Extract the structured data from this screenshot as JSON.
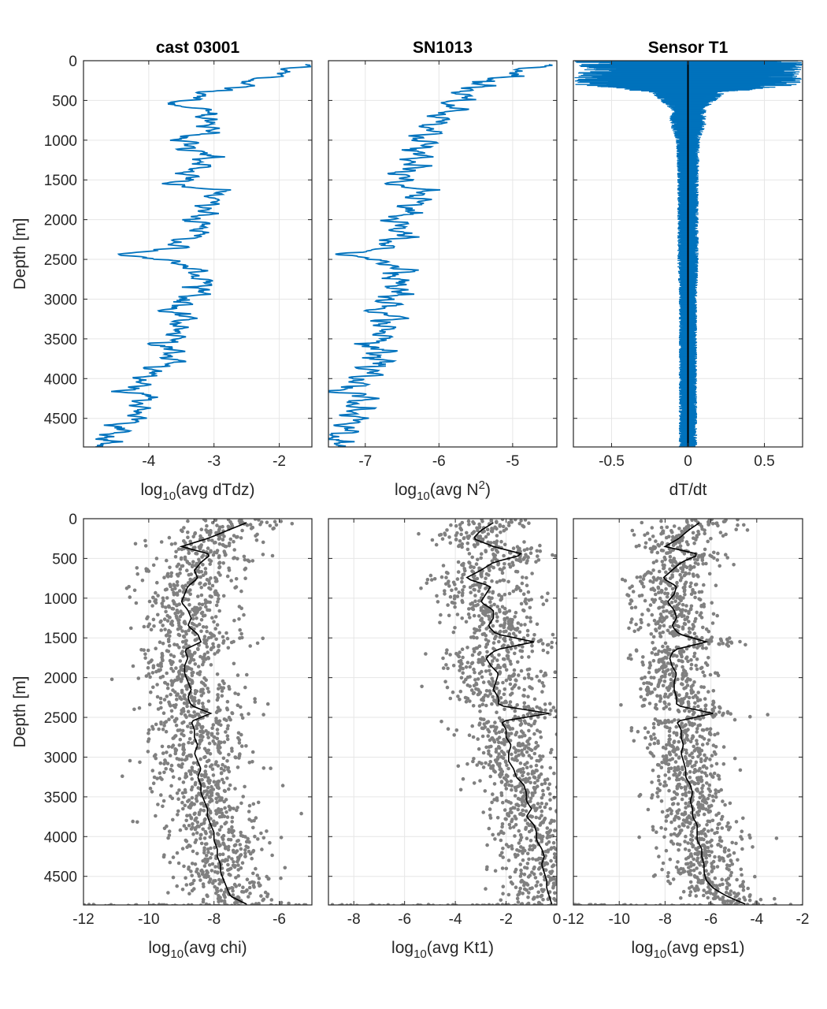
{
  "figure": {
    "colors": {
      "blue": "#0072BD",
      "gray": "#808080",
      "black": "#000000",
      "grid": "#e6e6e6",
      "axis": "#262626"
    }
  },
  "chart_data": [
    {
      "id": "p1",
      "type": "line",
      "title": "cast 03001",
      "xlabel": {
        "pre": "log",
        "sub": "10",
        "post": "(avg dTdz)"
      },
      "ylabel": "Depth [m]",
      "xlim": [
        -5.0,
        -1.5
      ],
      "ylim": [
        0,
        4860
      ],
      "xticks": [
        -4,
        -3,
        -2
      ],
      "xtick_labels": [
        "-4",
        "-3",
        "-2"
      ],
      "yticks": [
        0,
        500,
        1000,
        1500,
        2000,
        2500,
        3000,
        3500,
        4000,
        4500
      ],
      "ytick_labels": [
        "0",
        "500",
        "1000",
        "1500",
        "2000",
        "2500",
        "3000",
        "3500",
        "4000",
        "4500"
      ],
      "series": [
        {
          "color": "#0072BD",
          "y": [
            50,
            150,
            250,
            350,
            450,
            550,
            650,
            750,
            850,
            950,
            1050,
            1150,
            1250,
            1350,
            1450,
            1550,
            1650,
            1750,
            1850,
            1950,
            2050,
            2150,
            2250,
            2350,
            2450,
            2550,
            2650,
            2750,
            2850,
            2950,
            3050,
            3150,
            3250,
            3350,
            3450,
            3550,
            3650,
            3750,
            3850,
            3950,
            4050,
            4150,
            4250,
            4350,
            4450,
            4550,
            4650,
            4750,
            4850
          ],
          "x": [
            -1.6,
            -1.9,
            -2.4,
            -2.7,
            -3.3,
            -3.6,
            -3.0,
            -3.2,
            -2.9,
            -3.4,
            -3.5,
            -3.2,
            -3.1,
            -3.3,
            -3.4,
            -3.6,
            -2.9,
            -3.0,
            -3.1,
            -3.2,
            -3.3,
            -3.1,
            -3.5,
            -3.6,
            -4.4,
            -3.4,
            -3.3,
            -3.2,
            -3.1,
            -3.3,
            -3.5,
            -3.7,
            -3.4,
            -3.6,
            -3.5,
            -3.8,
            -3.7,
            -3.6,
            -3.8,
            -4.0,
            -4.1,
            -4.3,
            -4.0,
            -4.2,
            -4.1,
            -4.3,
            -4.5,
            -4.6,
            -4.8
          ]
        }
      ]
    },
    {
      "id": "p2",
      "type": "line",
      "title": "SN1013",
      "xlabel": {
        "pre": "log",
        "sub": "10",
        "post": "(avg N",
        "sup": "2",
        "tail": ")"
      },
      "xlim": [
        -7.5,
        -4.4
      ],
      "ylim": [
        0,
        4860
      ],
      "xticks": [
        -7,
        -6,
        -5
      ],
      "xtick_labels": [
        "-7",
        "-6",
        "-5"
      ],
      "yticks": [
        0,
        500,
        1000,
        1500,
        2000,
        2500,
        3000,
        3500,
        4000,
        4500
      ],
      "series": [
        {
          "color": "#0072BD",
          "y": [
            50,
            150,
            250,
            350,
            450,
            550,
            650,
            750,
            850,
            950,
            1050,
            1150,
            1250,
            1350,
            1450,
            1550,
            1650,
            1750,
            1850,
            1950,
            2050,
            2150,
            2250,
            2350,
            2450,
            2550,
            2650,
            2750,
            2850,
            2950,
            3050,
            3150,
            3250,
            3350,
            3450,
            3550,
            3650,
            3750,
            3850,
            3950,
            4050,
            4150,
            4250,
            4350,
            4450,
            4550,
            4650,
            4750,
            4850
          ],
          "x": [
            -4.5,
            -5.0,
            -5.3,
            -5.6,
            -5.7,
            -5.8,
            -5.9,
            -6.0,
            -6.1,
            -6.2,
            -6.2,
            -6.3,
            -6.3,
            -6.4,
            -6.5,
            -6.6,
            -6.2,
            -6.3,
            -6.4,
            -6.5,
            -6.6,
            -6.5,
            -6.6,
            -6.7,
            -7.3,
            -6.6,
            -6.5,
            -6.6,
            -6.5,
            -6.6,
            -6.7,
            -6.8,
            -6.6,
            -6.8,
            -6.7,
            -6.9,
            -6.8,
            -6.8,
            -6.9,
            -7.0,
            -7.1,
            -7.3,
            -7.0,
            -7.2,
            -7.1,
            -7.2,
            -7.3,
            -7.4,
            -7.4
          ]
        }
      ]
    },
    {
      "id": "p3",
      "type": "line",
      "title": "Sensor T1",
      "xlabel": {
        "pre": "dT/dt"
      },
      "xlim": [
        -0.75,
        0.75
      ],
      "ylim": [
        0,
        4860
      ],
      "xticks": [
        -0.5,
        0,
        0.5
      ],
      "xtick_labels": [
        "-0.5",
        "0",
        "0.5"
      ],
      "yticks": [
        0,
        500,
        1000,
        1500,
        2000,
        2500,
        3000,
        3500,
        4000,
        4500
      ],
      "series": [
        {
          "name_hidden": "",
          "color": "#0072BD",
          "style": "envelope",
          "y": [
            0,
            100,
            200,
            300,
            400,
            600,
            800,
            1000,
            1500,
            2000,
            2500,
            3000,
            3500,
            4000,
            4500,
            4860
          ],
          "half_width": [
            0.75,
            0.75,
            0.75,
            0.75,
            0.25,
            0.12,
            0.12,
            0.08,
            0.07,
            0.07,
            0.07,
            0.06,
            0.06,
            0.06,
            0.06,
            0.06
          ]
        },
        {
          "color": "#000000",
          "style": "center",
          "x": 0
        }
      ]
    },
    {
      "id": "p4",
      "type": "scatter",
      "title": "",
      "xlabel": {
        "pre": "log",
        "sub": "10",
        "post": "(avg chi)"
      },
      "ylabel": "Depth [m]",
      "xlim": [
        -12,
        -5
      ],
      "ylim": [
        0,
        4860
      ],
      "xticks": [
        -12,
        -10,
        -8,
        -6
      ],
      "xtick_labels": [
        "-12",
        "-10",
        "-8",
        "-6"
      ],
      "yticks": [
        0,
        500,
        1000,
        1500,
        2000,
        2500,
        3000,
        3500,
        4000,
        4500
      ],
      "ytick_labels": [
        "0",
        "500",
        "1000",
        "1500",
        "2000",
        "2500",
        "3000",
        "3500",
        "4000",
        "4500"
      ],
      "scatter": {
        "color": "#808080",
        "spread": 0.75
      },
      "series": [
        {
          "color": "#000000",
          "y": [
            50,
            150,
            250,
            350,
            450,
            550,
            650,
            750,
            850,
            950,
            1050,
            1150,
            1250,
            1350,
            1450,
            1550,
            1650,
            1750,
            1850,
            1950,
            2050,
            2150,
            2250,
            2350,
            2450,
            2550,
            2650,
            2750,
            2850,
            2950,
            3050,
            3150,
            3250,
            3350,
            3450,
            3550,
            3650,
            3750,
            3850,
            3950,
            4050,
            4150,
            4250,
            4350,
            4450,
            4550,
            4650,
            4750,
            4850
          ],
          "x": [
            -7.0,
            -7.6,
            -8.2,
            -9.0,
            -8.1,
            -8.4,
            -8.6,
            -8.5,
            -8.8,
            -8.9,
            -9.0,
            -8.8,
            -8.7,
            -8.8,
            -8.5,
            -8.4,
            -8.9,
            -8.8,
            -8.9,
            -8.9,
            -8.8,
            -8.7,
            -8.8,
            -8.7,
            -8.1,
            -8.7,
            -8.6,
            -8.6,
            -8.5,
            -8.6,
            -8.5,
            -8.4,
            -8.5,
            -8.4,
            -8.4,
            -8.3,
            -8.2,
            -8.2,
            -8.1,
            -8.0,
            -8.0,
            -7.9,
            -7.9,
            -7.8,
            -7.8,
            -7.7,
            -7.6,
            -7.5,
            -7.0
          ]
        }
      ]
    },
    {
      "id": "p5",
      "type": "scatter",
      "title": "",
      "xlabel": {
        "pre": "log",
        "sub": "10",
        "post": "(avg Kt1)"
      },
      "xlim": [
        -9,
        0
      ],
      "ylim": [
        0,
        4860
      ],
      "xticks": [
        -8,
        -6,
        -4,
        -2,
        0
      ],
      "xtick_labels": [
        "-8",
        "-6",
        "-4",
        "-2",
        "0"
      ],
      "yticks": [
        0,
        500,
        1000,
        1500,
        2000,
        2500,
        3000,
        3500,
        4000,
        4500
      ],
      "scatter": {
        "color": "#808080",
        "spread": 0.9
      },
      "series": [
        {
          "color": "#000000",
          "y": [
            50,
            150,
            250,
            350,
            450,
            550,
            650,
            750,
            850,
            950,
            1050,
            1150,
            1250,
            1350,
            1450,
            1550,
            1650,
            1750,
            1850,
            1950,
            2050,
            2150,
            2250,
            2350,
            2450,
            2550,
            2650,
            2750,
            2850,
            2950,
            3050,
            3150,
            3250,
            3350,
            3450,
            3550,
            3650,
            3750,
            3850,
            3950,
            4050,
            4150,
            4250,
            4350,
            4450,
            4550,
            4650,
            4750,
            4850
          ],
          "x": [
            -2.5,
            -3.0,
            -3.3,
            -2.5,
            -1.3,
            -2.5,
            -3.0,
            -3.6,
            -2.6,
            -2.8,
            -3.0,
            -2.5,
            -2.5,
            -2.7,
            -2.4,
            -0.9,
            -2.4,
            -2.8,
            -2.6,
            -2.3,
            -2.4,
            -2.5,
            -2.3,
            -2.3,
            -0.3,
            -2.2,
            -2.0,
            -2.0,
            -1.8,
            -1.9,
            -1.9,
            -1.7,
            -1.6,
            -1.3,
            -1.2,
            -1.2,
            -1.0,
            -1.2,
            -0.9,
            -0.8,
            -0.8,
            -0.6,
            -0.5,
            -0.6,
            -0.5,
            -0.4,
            -0.4,
            -0.3,
            -0.2
          ]
        }
      ]
    },
    {
      "id": "p6",
      "type": "scatter",
      "title": "",
      "xlabel": {
        "pre": "log",
        "sub": "10",
        "post": "(avg eps1)"
      },
      "xlim": [
        -12,
        -2
      ],
      "ylim": [
        0,
        4860
      ],
      "xticks": [
        -12,
        -10,
        -8,
        -6,
        -4,
        -2
      ],
      "xtick_labels": [
        "-12",
        "-10",
        "-8",
        "-6",
        "-4",
        "-2"
      ],
      "yticks": [
        0,
        500,
        1000,
        1500,
        2000,
        2500,
        3000,
        3500,
        4000,
        4500
      ],
      "scatter": {
        "color": "#808080",
        "spread": 0.85
      },
      "series": [
        {
          "color": "#000000",
          "y": [
            50,
            150,
            250,
            350,
            450,
            550,
            650,
            750,
            850,
            950,
            1050,
            1150,
            1250,
            1350,
            1450,
            1550,
            1650,
            1750,
            1850,
            1950,
            2050,
            2150,
            2250,
            2350,
            2450,
            2550,
            2650,
            2750,
            2850,
            2950,
            3050,
            3150,
            3250,
            3350,
            3450,
            3550,
            3650,
            3750,
            3850,
            3950,
            4050,
            4150,
            4250,
            4350,
            4450,
            4550,
            4650,
            4750,
            4850
          ],
          "x": [
            -6.5,
            -7.0,
            -7.4,
            -8.0,
            -6.5,
            -7.3,
            -7.7,
            -8.1,
            -7.5,
            -7.6,
            -7.9,
            -7.6,
            -7.5,
            -7.7,
            -7.4,
            -6.2,
            -7.6,
            -7.8,
            -7.7,
            -7.5,
            -7.6,
            -7.6,
            -7.5,
            -7.5,
            -5.9,
            -7.5,
            -7.3,
            -7.3,
            -7.2,
            -7.3,
            -7.2,
            -7.1,
            -7.1,
            -6.9,
            -6.8,
            -6.9,
            -6.8,
            -6.8,
            -6.6,
            -6.6,
            -6.6,
            -6.4,
            -6.4,
            -6.3,
            -6.3,
            -6.2,
            -5.9,
            -5.3,
            -4.5
          ]
        }
      ]
    }
  ]
}
